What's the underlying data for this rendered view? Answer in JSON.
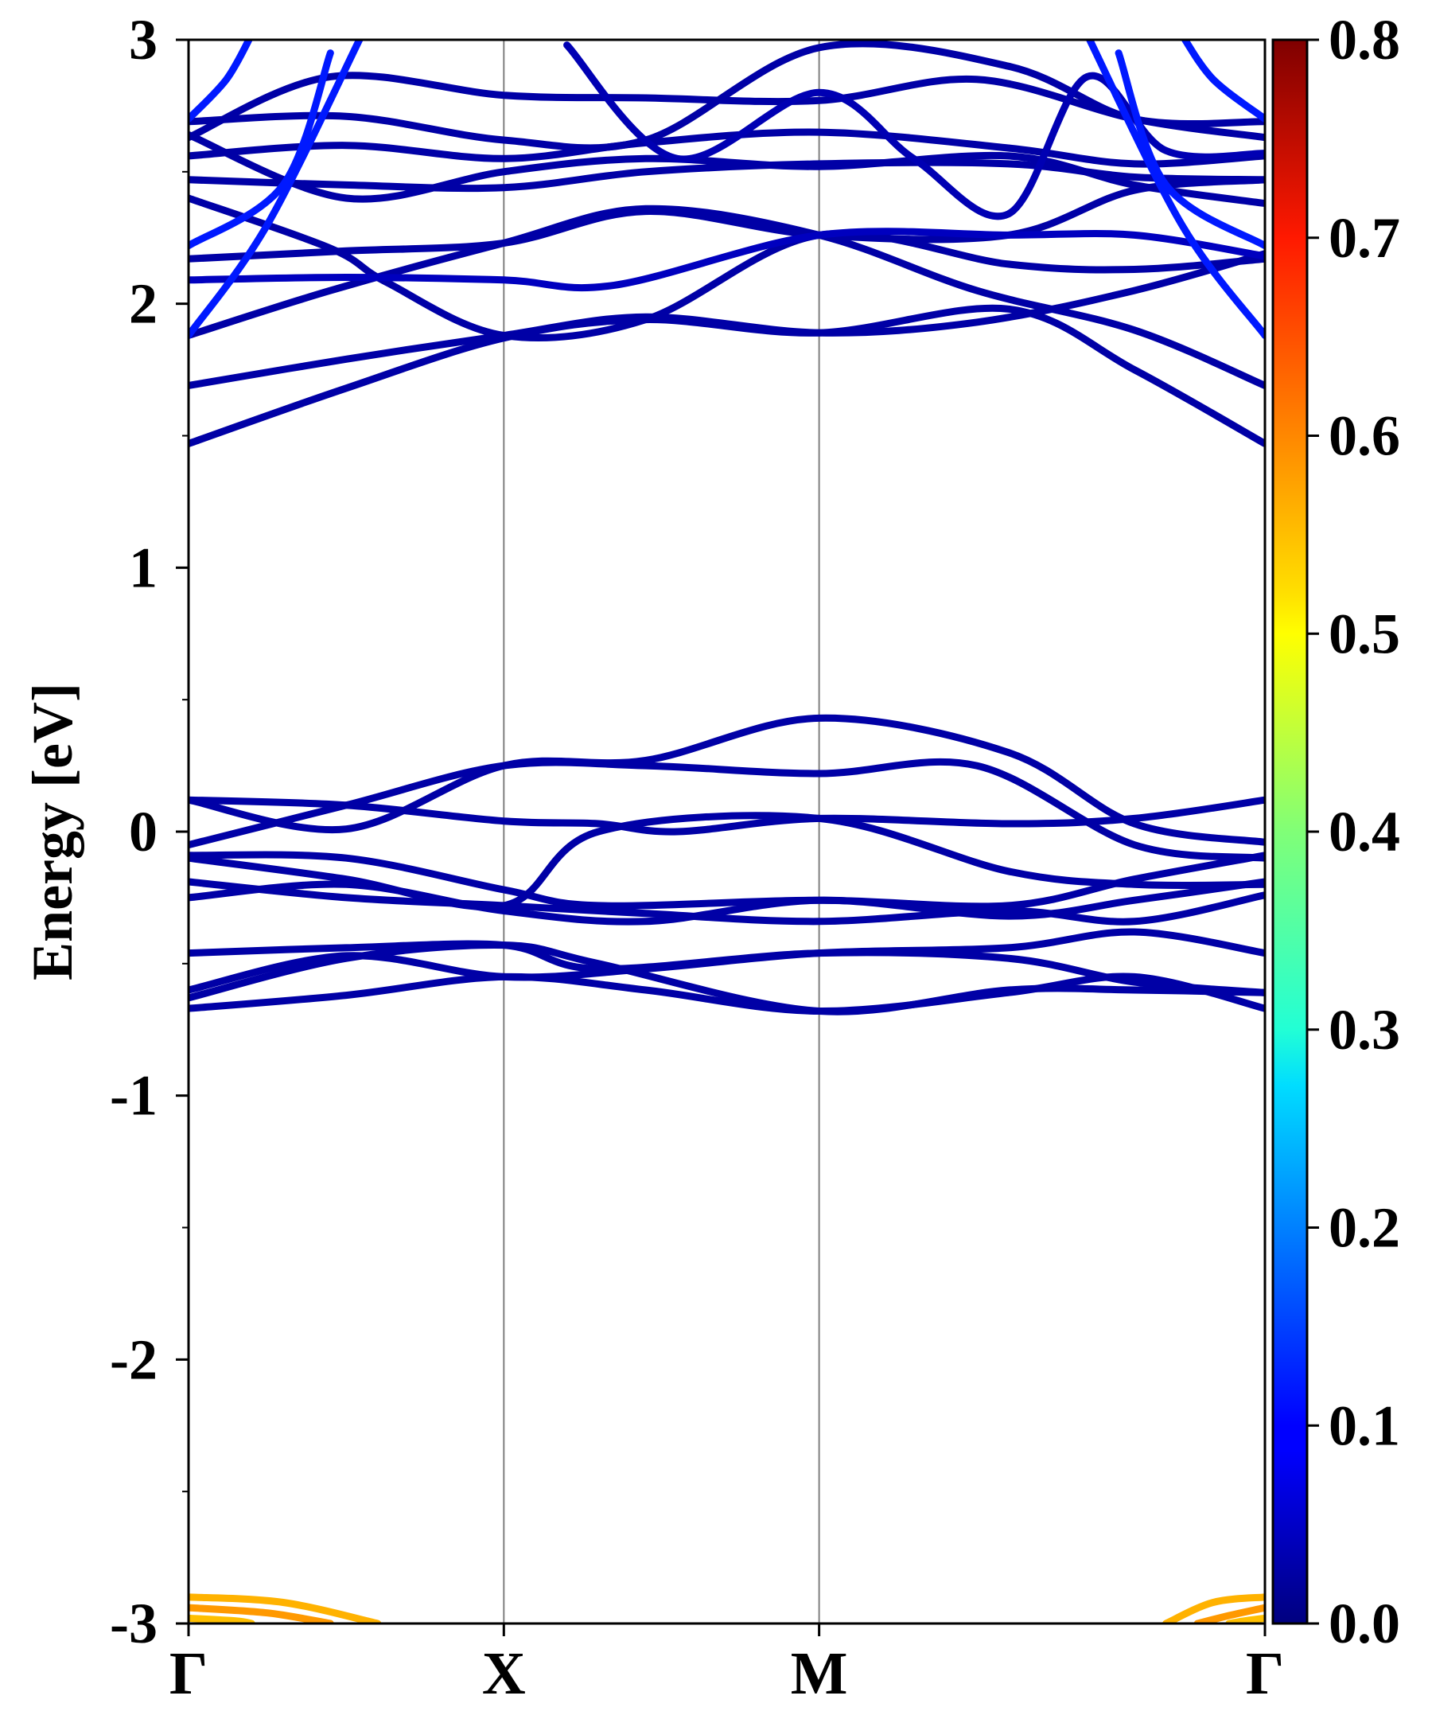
{
  "chart_data": {
    "type": "line",
    "subtype": "electronic band structure (projected weight colored)",
    "title": "",
    "xlabel": "",
    "ylabel": "Energy [eV]",
    "ylim": [
      -3,
      3
    ],
    "y_ticks": [
      {
        "value": 3,
        "label": "3"
      },
      {
        "value": 2,
        "label": "2"
      },
      {
        "value": 1,
        "label": "1"
      },
      {
        "value": 0,
        "label": "0"
      },
      {
        "value": -1,
        "label": "-1"
      },
      {
        "value": -2,
        "label": "-2"
      },
      {
        "value": -3,
        "label": "-3"
      }
    ],
    "y_minor_step": 0.5,
    "kpath": [
      {
        "label": "Γ",
        "k": 0
      },
      {
        "label": "X",
        "k": 1
      },
      {
        "label": "M",
        "k": 2
      },
      {
        "label": "Γ",
        "k": 3.414
      }
    ],
    "grid": "vertical lines at high-symmetry points",
    "colorbar": {
      "colormap": "jet",
      "range": [
        0.0,
        0.8
      ],
      "ticks": [
        {
          "value": 0.8,
          "label": "0.8"
        },
        {
          "value": 0.7,
          "label": "0.7"
        },
        {
          "value": 0.6,
          "label": "0.6"
        },
        {
          "value": 0.5,
          "label": "0.5"
        },
        {
          "value": 0.4,
          "label": "0.4"
        },
        {
          "value": 0.3,
          "label": "0.3"
        },
        {
          "value": 0.2,
          "label": "0.2"
        },
        {
          "value": 0.1,
          "label": "0.1"
        },
        {
          "value": 0.0,
          "label": "0.0"
        }
      ]
    },
    "bands": [
      {
        "weight": 0.03,
        "points": [
          [
            0,
            1.47
          ],
          [
            0.5,
            1.68
          ],
          [
            1.0,
            1.87
          ],
          [
            1.45,
            1.94
          ],
          [
            2.0,
            1.89
          ],
          [
            2.6,
            1.98
          ],
          [
            3.0,
            1.75
          ],
          [
            3.414,
            1.47
          ]
        ]
      },
      {
        "weight": 0.03,
        "points": [
          [
            0,
            1.69
          ],
          [
            0.5,
            1.79
          ],
          [
            1.0,
            1.88
          ],
          [
            1.45,
            1.95
          ],
          [
            2.0,
            1.89
          ],
          [
            2.5,
            1.93
          ],
          [
            3.0,
            2.05
          ],
          [
            3.414,
            2.19
          ]
        ]
      },
      {
        "weight": 0.03,
        "points": [
          [
            0,
            1.88
          ],
          [
            0.45,
            2.05
          ],
          [
            1.0,
            2.23
          ],
          [
            1.45,
            2.36
          ],
          [
            2.0,
            2.26
          ],
          [
            2.5,
            2.05
          ],
          [
            3.0,
            1.9
          ],
          [
            3.414,
            1.69
          ]
        ]
      },
      {
        "weight": 0.03,
        "points": [
          [
            0,
            2.17
          ],
          [
            0.5,
            2.2
          ],
          [
            1.0,
            2.23
          ],
          [
            1.45,
            2.35
          ],
          [
            2.0,
            2.26
          ],
          [
            2.6,
            2.26
          ],
          [
            3.0,
            2.43
          ],
          [
            3.414,
            2.47
          ]
        ]
      },
      {
        "weight": 0.03,
        "points": [
          [
            0,
            2.4
          ],
          [
            0.45,
            2.21
          ],
          [
            0.63,
            2.08
          ],
          [
            1.0,
            1.88
          ],
          [
            1.45,
            1.94
          ],
          [
            2.0,
            2.26
          ],
          [
            2.6,
            2.15
          ],
          [
            3.0,
            2.13
          ],
          [
            3.414,
            2.17
          ]
        ]
      },
      {
        "weight": 0.03,
        "points": [
          [
            0,
            2.47
          ],
          [
            0.5,
            2.45
          ],
          [
            1.0,
            2.44
          ],
          [
            1.45,
            2.5
          ],
          [
            2.0,
            2.53
          ],
          [
            2.6,
            2.53
          ],
          [
            3.0,
            2.48
          ],
          [
            3.414,
            2.47
          ]
        ]
      },
      {
        "weight": 0.03,
        "points": [
          [
            0,
            2.56
          ],
          [
            0.5,
            2.6
          ],
          [
            1.0,
            2.55
          ],
          [
            1.45,
            2.61
          ],
          [
            2.0,
            2.65
          ],
          [
            2.6,
            2.59
          ],
          [
            3.0,
            2.53
          ],
          [
            3.414,
            2.56
          ]
        ]
      },
      {
        "weight": 0.03,
        "points": [
          [
            0,
            2.63
          ],
          [
            0.45,
            2.86
          ],
          [
            1.0,
            2.79
          ],
          [
            1.45,
            2.78
          ],
          [
            2.0,
            2.77
          ],
          [
            2.5,
            2.85
          ],
          [
            3.0,
            2.7
          ],
          [
            3.414,
            2.63
          ]
        ]
      },
      {
        "weight": 0.03,
        "points": [
          [
            0,
            2.69
          ],
          [
            0.5,
            2.71
          ],
          [
            1.0,
            2.62
          ],
          [
            1.45,
            2.62
          ],
          [
            2.0,
            2.97
          ],
          [
            2.6,
            2.9
          ],
          [
            3.0,
            2.7
          ],
          [
            3.414,
            2.69
          ]
        ]
      },
      {
        "weight": 0.03,
        "points": [
          [
            0,
            2.64
          ],
          [
            0.5,
            2.4
          ],
          [
            1.0,
            2.5
          ],
          [
            1.45,
            2.55
          ],
          [
            2.0,
            2.52
          ],
          [
            2.6,
            2.56
          ],
          [
            3.0,
            2.45
          ],
          [
            3.414,
            2.38
          ]
        ]
      },
      {
        "weight": 0.05,
        "points": [
          [
            0,
            2.09
          ],
          [
            0.5,
            2.1
          ],
          [
            1.0,
            2.09
          ],
          [
            1.35,
            2.07
          ],
          [
            2.0,
            2.26
          ],
          [
            2.6,
            2.26
          ],
          [
            3.0,
            2.26
          ],
          [
            3.414,
            2.18
          ]
        ]
      },
      {
        "weight": 0.04,
        "points": [
          [
            1.2,
            2.98
          ],
          [
            1.55,
            2.55
          ],
          [
            2.0,
            2.8
          ],
          [
            2.3,
            2.55
          ],
          [
            2.6,
            2.34
          ],
          [
            2.85,
            2.86
          ],
          [
            3.1,
            2.58
          ],
          [
            3.414,
            2.57
          ]
        ]
      },
      {
        "weight": 0.12,
        "points": [
          [
            0,
            1.88
          ],
          [
            0.25,
            2.3
          ],
          [
            0.55,
            3.02
          ]
        ]
      },
      {
        "weight": 0.12,
        "points": [
          [
            0,
            2.22
          ],
          [
            0.3,
            2.45
          ],
          [
            0.45,
            2.95
          ]
        ]
      },
      {
        "weight": 0.12,
        "points": [
          [
            3.414,
            1.88
          ],
          [
            3.15,
            2.3
          ],
          [
            2.85,
            3.02
          ]
        ]
      },
      {
        "weight": 0.12,
        "points": [
          [
            3.414,
            2.22
          ],
          [
            3.1,
            2.45
          ],
          [
            2.95,
            2.95
          ]
        ]
      },
      {
        "weight": 0.12,
        "points": [
          [
            3.414,
            2.7
          ],
          [
            3.25,
            2.85
          ],
          [
            3.15,
            3.02
          ]
        ]
      },
      {
        "weight": 0.12,
        "points": [
          [
            0,
            2.7
          ],
          [
            0.12,
            2.85
          ],
          [
            0.2,
            3.02
          ]
        ]
      },
      {
        "weight": 0.03,
        "points": [
          [
            0,
            0.12
          ],
          [
            0.5,
            0.1
          ],
          [
            1.0,
            0.04
          ],
          [
            1.3,
            0.03
          ],
          [
            1.55,
            0.0
          ],
          [
            2.0,
            0.05
          ],
          [
            2.6,
            0.03
          ],
          [
            3.0,
            0.05
          ],
          [
            3.414,
            0.12
          ]
        ]
      },
      {
        "weight": 0.03,
        "points": [
          [
            0,
            0.12
          ],
          [
            0.5,
            0.01
          ],
          [
            1.0,
            0.25
          ],
          [
            1.45,
            0.27
          ],
          [
            2.0,
            0.43
          ],
          [
            2.6,
            0.3
          ],
          [
            3.0,
            0.03
          ],
          [
            3.414,
            -0.04
          ]
        ]
      },
      {
        "weight": 0.03,
        "points": [
          [
            0,
            -0.05
          ],
          [
            0.5,
            0.1
          ],
          [
            1.0,
            0.25
          ],
          [
            1.45,
            0.25
          ],
          [
            2.0,
            0.22
          ],
          [
            2.5,
            0.25
          ],
          [
            3.0,
            -0.05
          ],
          [
            3.414,
            -0.1
          ]
        ]
      },
      {
        "weight": 0.03,
        "points": [
          [
            0,
            -0.1
          ],
          [
            0.5,
            -0.18
          ],
          [
            1.0,
            -0.28
          ],
          [
            1.3,
            0.0
          ],
          [
            2.0,
            0.05
          ],
          [
            2.6,
            -0.15
          ],
          [
            3.0,
            -0.2
          ],
          [
            3.414,
            -0.2
          ]
        ]
      },
      {
        "weight": 0.03,
        "points": [
          [
            0,
            -0.09
          ],
          [
            0.5,
            -0.1
          ],
          [
            1.0,
            -0.22
          ],
          [
            1.3,
            -0.28
          ],
          [
            2.0,
            -0.26
          ],
          [
            2.6,
            -0.28
          ],
          [
            3.0,
            -0.18
          ],
          [
            3.414,
            -0.09
          ]
        ]
      },
      {
        "weight": 0.03,
        "points": [
          [
            0,
            -0.19
          ],
          [
            0.5,
            -0.25
          ],
          [
            1.0,
            -0.28
          ],
          [
            1.45,
            -0.31
          ],
          [
            2.0,
            -0.34
          ],
          [
            2.6,
            -0.3
          ],
          [
            3.0,
            -0.34
          ],
          [
            3.414,
            -0.24
          ]
        ]
      },
      {
        "weight": 0.03,
        "points": [
          [
            0,
            -0.25
          ],
          [
            0.5,
            -0.2
          ],
          [
            1.0,
            -0.3
          ],
          [
            1.45,
            -0.34
          ],
          [
            2.0,
            -0.26
          ],
          [
            2.6,
            -0.32
          ],
          [
            3.0,
            -0.26
          ],
          [
            3.414,
            -0.19
          ]
        ]
      },
      {
        "weight": 0.03,
        "points": [
          [
            0,
            -0.46
          ],
          [
            0.5,
            -0.44
          ],
          [
            1.0,
            -0.43
          ],
          [
            1.3,
            -0.52
          ],
          [
            2.0,
            -0.46
          ],
          [
            2.6,
            -0.48
          ],
          [
            3.0,
            -0.57
          ],
          [
            3.414,
            -0.61
          ]
        ]
      },
      {
        "weight": 0.03,
        "points": [
          [
            0,
            -0.6
          ],
          [
            0.5,
            -0.47
          ],
          [
            1.0,
            -0.55
          ],
          [
            1.45,
            -0.52
          ],
          [
            2.0,
            -0.46
          ],
          [
            2.6,
            -0.44
          ],
          [
            3.0,
            -0.38
          ],
          [
            3.414,
            -0.46
          ]
        ]
      },
      {
        "weight": 0.03,
        "points": [
          [
            0,
            -0.67
          ],
          [
            0.5,
            -0.62
          ],
          [
            1.0,
            -0.55
          ],
          [
            1.45,
            -0.6
          ],
          [
            2.0,
            -0.68
          ],
          [
            2.6,
            -0.61
          ],
          [
            3.0,
            -0.55
          ],
          [
            3.414,
            -0.67
          ]
        ]
      },
      {
        "weight": 0.03,
        "points": [
          [
            0,
            -0.63
          ],
          [
            0.5,
            -0.48
          ],
          [
            1.0,
            -0.43
          ],
          [
            1.3,
            -0.5
          ],
          [
            2.0,
            -0.68
          ],
          [
            2.6,
            -0.6
          ],
          [
            3.0,
            -0.6
          ],
          [
            3.414,
            -0.61
          ]
        ]
      },
      {
        "weight": 0.56,
        "points": [
          [
            0,
            -2.9
          ],
          [
            0.3,
            -2.92
          ],
          [
            0.6,
            -3.0
          ]
        ]
      },
      {
        "weight": 0.58,
        "points": [
          [
            0,
            -2.94
          ],
          [
            0.25,
            -2.96
          ],
          [
            0.45,
            -3.0
          ]
        ]
      },
      {
        "weight": 0.55,
        "points": [
          [
            0,
            -2.98
          ],
          [
            0.15,
            -2.99
          ],
          [
            0.2,
            -3.0
          ]
        ]
      },
      {
        "weight": 0.56,
        "points": [
          [
            3.414,
            -2.9
          ],
          [
            3.25,
            -2.92
          ],
          [
            3.1,
            -3.0
          ]
        ]
      },
      {
        "weight": 0.58,
        "points": [
          [
            3.414,
            -2.94
          ],
          [
            3.3,
            -2.97
          ],
          [
            3.2,
            -3.0
          ]
        ]
      },
      {
        "weight": 0.55,
        "points": [
          [
            3.414,
            -2.98
          ],
          [
            3.35,
            -2.99
          ],
          [
            3.3,
            -3.0
          ]
        ]
      }
    ]
  }
}
